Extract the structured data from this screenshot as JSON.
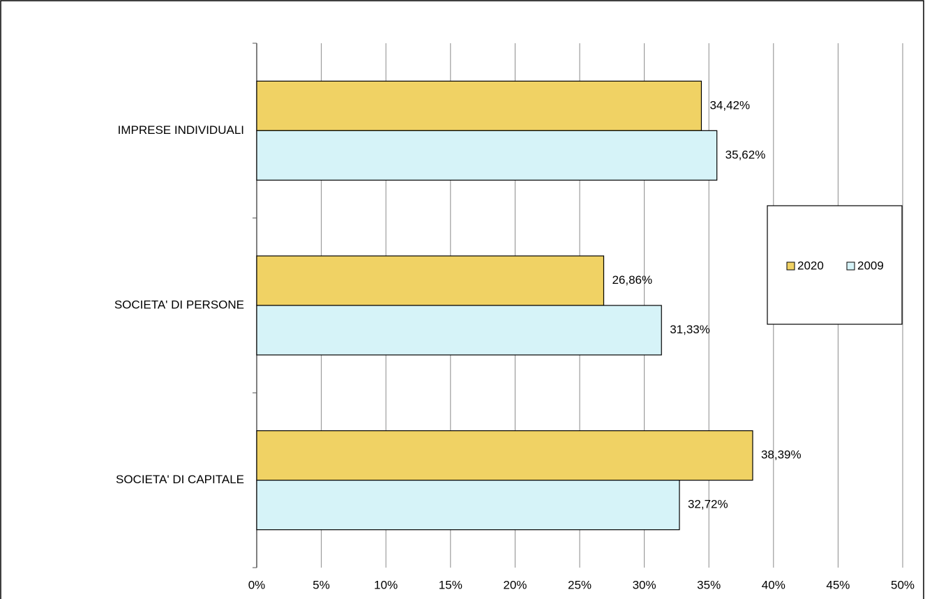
{
  "chart_data": {
    "type": "hbar",
    "categories": [
      "IMPRESE INDIVIDUALI",
      "SOCIETA' DI PERSONE",
      "SOCIETA' DI CAPITALE"
    ],
    "series": [
      {
        "name": "2020",
        "color": "#f0d264",
        "values": [
          34.42,
          26.86,
          38.39
        ],
        "value_labels": [
          "34,42%",
          "26,86%",
          "38,39%"
        ]
      },
      {
        "name": "2009",
        "color": "#d6f3f8",
        "values": [
          35.62,
          31.33,
          32.72
        ],
        "value_labels": [
          "35,62%",
          "31,33%",
          "32,72%"
        ]
      }
    ],
    "xlim": [
      0,
      50
    ],
    "xticks": [
      {
        "value": 0,
        "label": "0%"
      },
      {
        "value": 5,
        "label": "5%"
      },
      {
        "value": 10,
        "label": "10%"
      },
      {
        "value": 15,
        "label": "15%"
      },
      {
        "value": 20,
        "label": "20%"
      },
      {
        "value": 25,
        "label": "25%"
      },
      {
        "value": 30,
        "label": "30%"
      },
      {
        "value": 35,
        "label": "35%"
      },
      {
        "value": 40,
        "label": "40%"
      },
      {
        "value": 45,
        "label": "45%"
      },
      {
        "value": 50,
        "label": "50%"
      }
    ],
    "grid": true,
    "legend": "right"
  }
}
